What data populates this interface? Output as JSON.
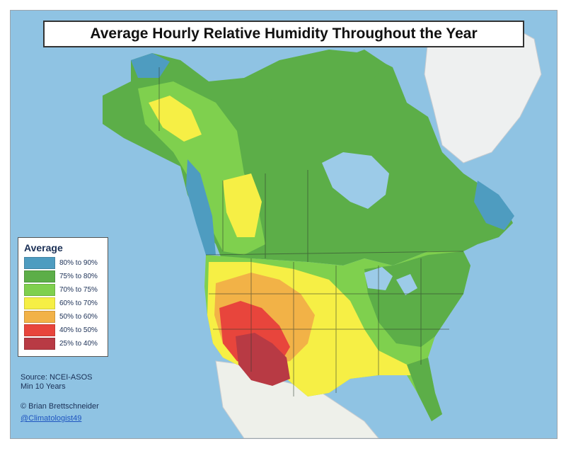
{
  "title": "Average Hourly Relative Humidity Throughout the Year",
  "legend": {
    "title": "Average",
    "items": [
      {
        "label": "80% to 90%",
        "color": "#4e9cc0"
      },
      {
        "label": "75% to 80%",
        "color": "#5cae48"
      },
      {
        "label": "70% to 75%",
        "color": "#7fd04e"
      },
      {
        "label": "60% to 70%",
        "color": "#f6ef45"
      },
      {
        "label": "50% to 60%",
        "color": "#f2b247"
      },
      {
        "label": "40% to 50%",
        "color": "#e8453c"
      },
      {
        "label": "25% to 40%",
        "color": "#b83a44"
      }
    ]
  },
  "source": {
    "line1": "Source: NCEI-ASOS",
    "line2": "Min 10 Years"
  },
  "credit": "© Brian Brettschneider",
  "handle": "@Climatologist49"
}
